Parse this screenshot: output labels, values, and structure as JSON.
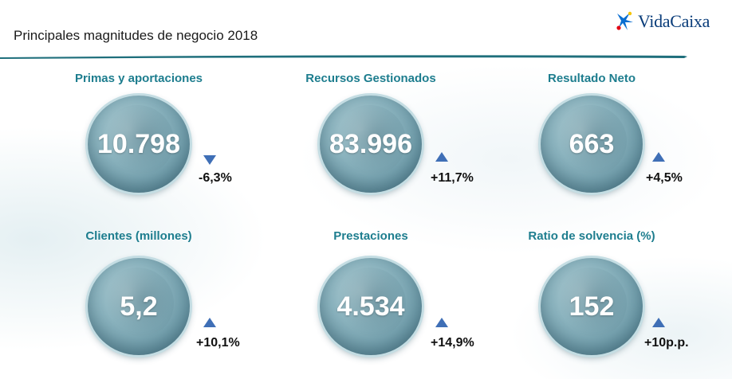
{
  "header": {
    "title": "Principales magnitudes de negocio 2018",
    "brand": "VidaCaixa",
    "logo_icon": "caixa-star-icon",
    "rule_color": "#1f6f7c"
  },
  "metrics": [
    {
      "label": "Primas y aportaciones",
      "value": "10.798",
      "change": "-6,3%",
      "trend": "down"
    },
    {
      "label": "Recursos Gestionados",
      "value": "83.996",
      "change": "+11,7%",
      "trend": "up"
    },
    {
      "label": "Resultado Neto",
      "value": "663",
      "change": "+4,5%",
      "trend": "up"
    },
    {
      "label": "Clientes (millones)",
      "value": "5,2",
      "change": "+10,1%",
      "trend": "up"
    },
    {
      "label": "Prestaciones",
      "value": "4.534",
      "change": "+14,9%",
      "trend": "up"
    },
    {
      "label": "Ratio de solvencia (%)",
      "value": "152",
      "change": "+10p.p.",
      "trend": "up"
    }
  ],
  "colors": {
    "label": "#1d7d8e",
    "arrow": "#3f6fb6",
    "bubble": "#7aa7b4"
  }
}
